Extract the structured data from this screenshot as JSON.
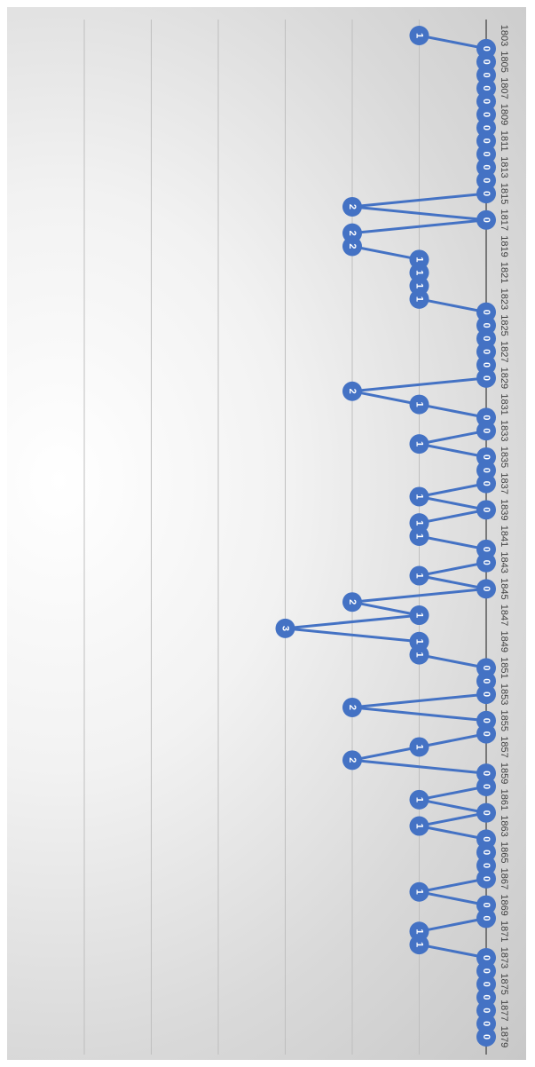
{
  "chart_data": {
    "type": "line",
    "orientation": "rotated-90",
    "title": "",
    "xlabel": "",
    "ylabel": "",
    "ylim": [
      0,
      6
    ],
    "grid": true,
    "legend": "none",
    "data_labels": true,
    "x_tick_labels": [
      "1803",
      "1805",
      "1807",
      "1809",
      "1811",
      "1813",
      "1815",
      "1817",
      "1819",
      "1821",
      "1823",
      "1825",
      "1827",
      "1829",
      "1831",
      "1833",
      "1835",
      "1837",
      "1839",
      "1841",
      "1843",
      "1845",
      "1847",
      "1849",
      "1851",
      "1853",
      "1855",
      "1857",
      "1859",
      "1861",
      "1863",
      "1865",
      "1867",
      "1869",
      "1871",
      "1873",
      "1875",
      "1877",
      "1879"
    ],
    "series": [
      {
        "x": [
          1803,
          1804,
          1805,
          1806,
          1807,
          1808,
          1809,
          1810,
          1811,
          1812,
          1813,
          1814,
          1815,
          1816,
          1817,
          1818,
          1819,
          1820,
          1821,
          1822,
          1823,
          1824,
          1825,
          1826,
          1827,
          1828,
          1829,
          1830,
          1831,
          1832,
          1833,
          1834,
          1835,
          1836,
          1837,
          1838,
          1839,
          1840,
          1841,
          1842,
          1843,
          1844,
          1845,
          1846,
          1847,
          1848,
          1849,
          1850,
          1851,
          1852,
          1853,
          1854,
          1855,
          1856,
          1857,
          1858,
          1859,
          1860,
          1861,
          1862,
          1863,
          1864,
          1865,
          1866,
          1867,
          1868,
          1869,
          1870,
          1871,
          1872,
          1873,
          1874,
          1875,
          1876,
          1877,
          1878,
          1879
        ],
        "values": [
          1,
          0,
          0,
          0,
          0,
          0,
          0,
          0,
          0,
          0,
          0,
          0,
          0,
          2,
          0,
          2,
          2,
          1,
          1,
          1,
          1,
          0,
          0,
          0,
          0,
          0,
          0,
          2,
          1,
          0,
          0,
          1,
          0,
          0,
          0,
          1,
          0,
          1,
          1,
          0,
          0,
          1,
          0,
          2,
          1,
          3,
          1,
          1,
          0,
          0,
          0,
          2,
          0,
          0,
          1,
          2,
          0,
          0,
          1,
          0,
          1,
          0,
          0,
          0,
          0,
          1,
          0,
          0,
          1,
          1,
          0,
          0,
          0,
          0,
          0,
          0,
          0
        ]
      }
    ],
    "colors": {
      "line": "#4472c4",
      "marker": "#4472c4",
      "label": "#ffffff",
      "grid": "#bfbfbf",
      "axis": "#595959",
      "tick": "#404040"
    }
  }
}
